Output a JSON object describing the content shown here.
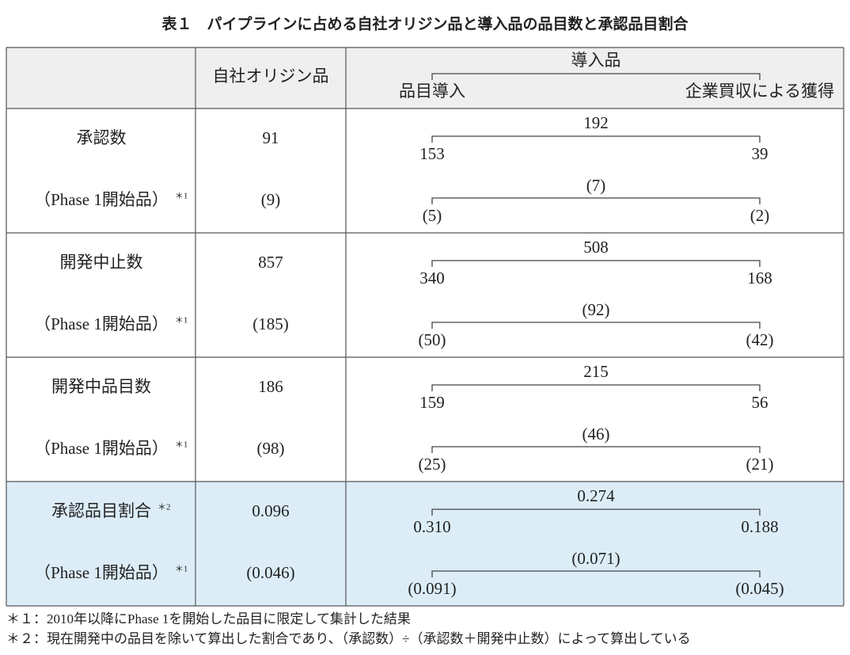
{
  "title": "表１　パイプラインに占める自社オリジン品と導入品の品目数と承認品目割合",
  "header": {
    "own": "自社オリジン品",
    "introduced": "導入品",
    "licensed": "品目導入",
    "acquired": "企業買収による獲得"
  },
  "rows": [
    {
      "label": "承認数",
      "note": "",
      "own": "91",
      "total": "192",
      "licensed": "153",
      "acquired": "39",
      "sub": {
        "label": "（Phase 1開始品）",
        "note": "＊1",
        "own": "(9)",
        "total": "(7)",
        "licensed": "(5)",
        "acquired": "(2)"
      }
    },
    {
      "label": "開発中止数",
      "note": "",
      "own": "857",
      "total": "508",
      "licensed": "340",
      "acquired": "168",
      "sub": {
        "label": "（Phase 1開始品）",
        "note": "＊1",
        "own": "(185)",
        "total": "(92)",
        "licensed": "(50)",
        "acquired": "(42)"
      }
    },
    {
      "label": "開発中品目数",
      "note": "",
      "own": "186",
      "total": "215",
      "licensed": "159",
      "acquired": "56",
      "sub": {
        "label": "（Phase 1開始品）",
        "note": "＊1",
        "own": "(98)",
        "total": "(46)",
        "licensed": "(25)",
        "acquired": "(21)"
      }
    },
    {
      "label": "承認品目割合",
      "note": "＊2",
      "own": "0.096",
      "total": "0.274",
      "licensed": "0.310",
      "acquired": "0.188",
      "sub": {
        "label": "（Phase 1開始品）",
        "note": "＊1",
        "own": "(0.046)",
        "total": "(0.071)",
        "licensed": "(0.091)",
        "acquired": "(0.045)"
      }
    }
  ],
  "footnotes": [
    "＊１：2010年以降にPhase 1を開始した品目に限定して集計した結果",
    "＊２：現在開発中の品目を除いて算出した割合であり、（承認数）÷（承認数＋開発中止数）によって算出している"
  ]
}
